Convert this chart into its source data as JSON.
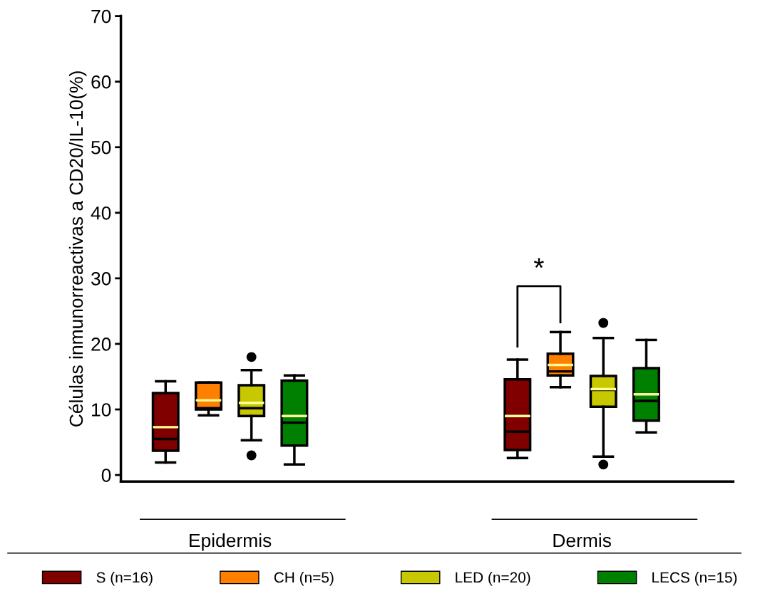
{
  "chart_data": {
    "type": "box",
    "ylabel": "Células inmunorreactivas a CD20/IL-10(%)",
    "categories": [
      "Epidermis",
      "Dermis"
    ],
    "ylim": [
      -1,
      70
    ],
    "yticks": [
      0,
      10,
      20,
      30,
      40,
      50,
      60,
      70
    ],
    "grid": false,
    "legend": "bottom",
    "annotations": [
      "*"
    ],
    "series": [
      {
        "name": "S (n=16)",
        "color": "#800000",
        "boxes": [
          {
            "low": 1.9,
            "q1": 3.7,
            "median": 5.5,
            "q3": 12.5,
            "high": 14.3,
            "mean": 7.3
          },
          {
            "low": 2.6,
            "q1": 3.8,
            "median": 6.6,
            "q3": 14.6,
            "high": 17.6,
            "mean": 9.0
          }
        ]
      },
      {
        "name": "CH (n=5)",
        "color": "#ff8000",
        "boxes": [
          {
            "low": 9.1,
            "q1": 10.0,
            "median": 10.2,
            "q3": 14.1,
            "high": 14.1,
            "mean": 11.4
          },
          {
            "low": 13.4,
            "q1": 15.2,
            "median": 15.8,
            "q3": 18.5,
            "high": 21.8,
            "mean": 16.8
          }
        ]
      },
      {
        "name": "LED (n=20)",
        "color": "#c8c800",
        "boxes": [
          {
            "low": 5.3,
            "q1": 9.0,
            "median": 10.2,
            "q3": 13.7,
            "high": 16.0,
            "mean": 11.0,
            "outliers": [
              18.0,
              3.0
            ]
          },
          {
            "low": 2.8,
            "q1": 10.4,
            "median": 13.0,
            "q3": 15.1,
            "high": 20.9,
            "mean": 13.1,
            "outliers": [
              23.2,
              1.6
            ]
          }
        ]
      },
      {
        "name": "LECS (n=15)",
        "color": "#008000",
        "boxes": [
          {
            "low": 1.6,
            "q1": 4.5,
            "median": 8.0,
            "q3": 14.4,
            "high": 15.2,
            "mean": 9.0
          },
          {
            "low": 6.5,
            "q1": 8.3,
            "median": 11.3,
            "q3": 16.3,
            "high": 20.6,
            "mean": 12.3
          }
        ]
      }
    ]
  }
}
